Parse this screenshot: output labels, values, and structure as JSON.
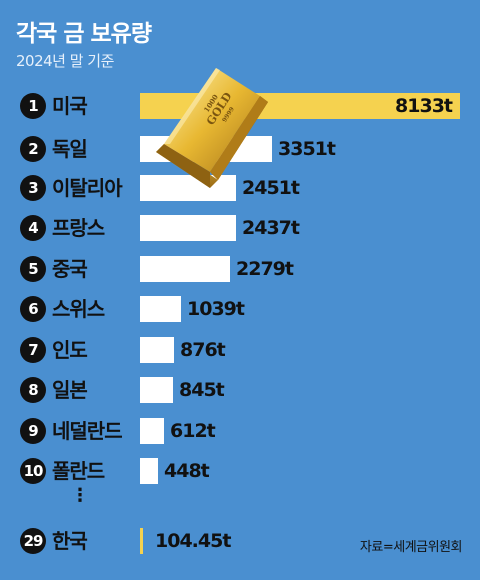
{
  "header": {
    "title": "각국 금 보유량",
    "subtitle": "2024년 말 기준"
  },
  "chart_data": {
    "type": "bar",
    "orientation": "horizontal",
    "title": "각국 금 보유량",
    "subtitle": "2024년 말 기준",
    "unit": "t",
    "categories": [
      "미국",
      "독일",
      "이탈리아",
      "프랑스",
      "중국",
      "스위스",
      "인도",
      "일본",
      "네덜란드",
      "폴란드",
      "한국"
    ],
    "ranks": [
      "1",
      "2",
      "3",
      "4",
      "5",
      "6",
      "7",
      "8",
      "9",
      "10",
      "29"
    ],
    "values": [
      8133,
      3351,
      2451,
      2437,
      2279,
      1039,
      876,
      845,
      612,
      448,
      104.45
    ],
    "value_labels": [
      "8133t",
      "3351t",
      "2451t",
      "2437t",
      "2279t",
      "1039t",
      "876t",
      "845t",
      "612t",
      "448t",
      "104.45t"
    ],
    "ellipsis": "⋮",
    "colors": {
      "background": "#4a8fd0",
      "bar": "#ffffff",
      "highlight": "#f5d24f",
      "rank_badge": "#111111"
    }
  },
  "goldbar": {
    "stamp_line1": "1000",
    "stamp_line2": "GOLD",
    "stamp_line3": "9999"
  },
  "source": "자료=세계금위원회"
}
